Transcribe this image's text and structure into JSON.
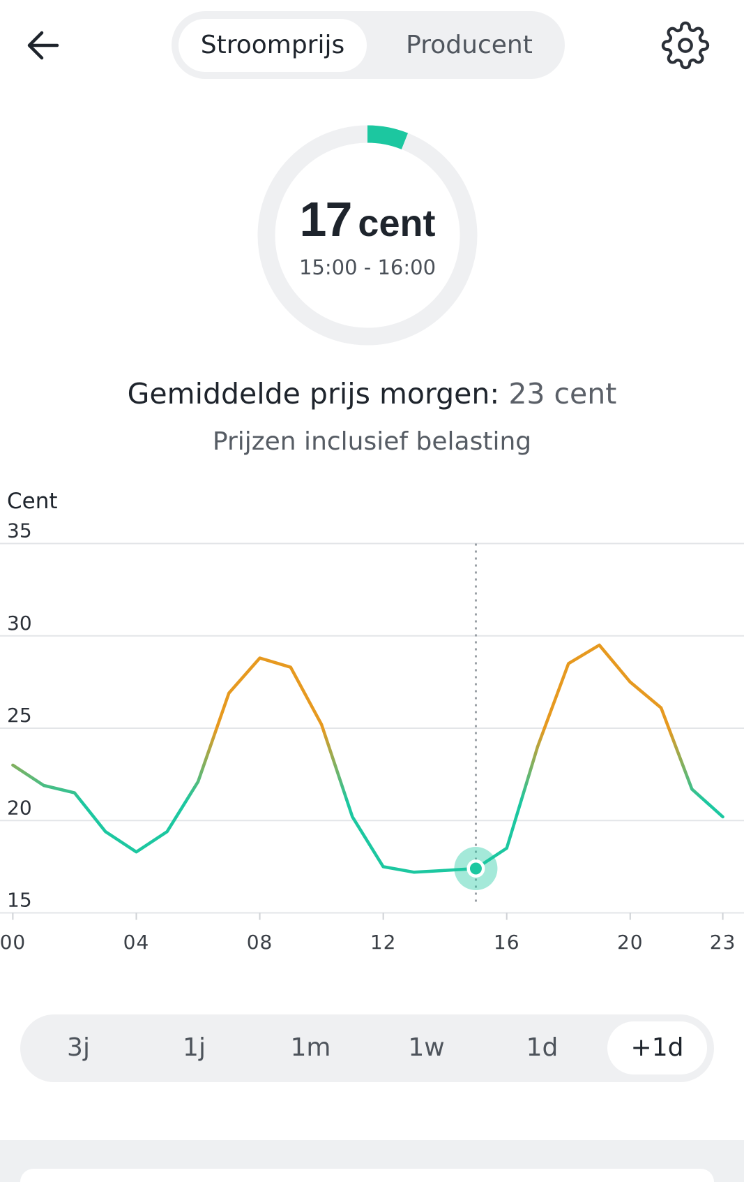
{
  "header": {
    "back_icon": "arrow-left-icon",
    "tabs": [
      {
        "label": "Stroomprijs",
        "active": true
      },
      {
        "label": "Producent",
        "active": false
      }
    ],
    "settings_icon": "gear-icon"
  },
  "current": {
    "price_value": "17",
    "price_unit": "cent",
    "time_range": "15:00 - 16:00",
    "gauge_fraction": 0.06
  },
  "summary": {
    "label": "Gemiddelde prijs morgen:",
    "value": "23 cent",
    "note": "Prijzen inclusief belasting"
  },
  "chart_data": {
    "type": "line",
    "ylabel": "Cent",
    "x": [
      0,
      1,
      2,
      3,
      4,
      5,
      6,
      7,
      8,
      9,
      10,
      11,
      12,
      13,
      14,
      15,
      16,
      17,
      18,
      19,
      20,
      21,
      22,
      23
    ],
    "x_ticks": [
      0,
      4,
      8,
      12,
      16,
      20,
      23
    ],
    "x_tick_labels": [
      "00",
      "04",
      "08",
      "12",
      "16",
      "20",
      "23"
    ],
    "y_ticks": [
      15,
      20,
      25,
      30,
      35
    ],
    "ylim": [
      15,
      35
    ],
    "grid": true,
    "series": [
      {
        "values": [
          23.0,
          21.9,
          21.5,
          19.4,
          18.3,
          19.4,
          22.1,
          26.9,
          28.8,
          28.3,
          25.2,
          20.2,
          17.5,
          17.2,
          17.3,
          17.4,
          18.5,
          24.0,
          28.5,
          29.5,
          27.5,
          26.1,
          21.7,
          20.2
        ]
      }
    ],
    "selected_x": 15
  },
  "range_selector": {
    "options": [
      "3j",
      "1j",
      "1m",
      "1w",
      "1d",
      "+1d"
    ],
    "selected_index": 5
  },
  "colors": {
    "accent": "#1cc7a0",
    "low_price": "#1cc7a0",
    "high_price": "#e6991f"
  }
}
